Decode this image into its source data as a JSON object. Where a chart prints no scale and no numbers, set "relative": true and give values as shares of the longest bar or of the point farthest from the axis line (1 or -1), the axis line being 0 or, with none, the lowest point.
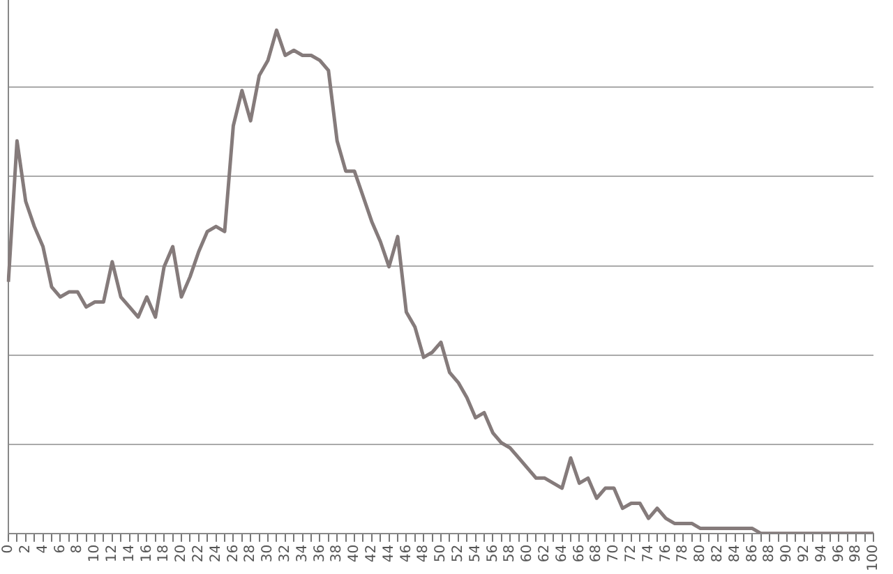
{
  "chart_data": {
    "type": "line",
    "relative": true,
    "grid": "y",
    "legend": false,
    "marker": "none",
    "line_style": "solid",
    "categories": [
      "0",
      null,
      "2",
      null,
      "4",
      null,
      "6",
      null,
      "8",
      null,
      "10",
      null,
      "12",
      null,
      "14",
      null,
      "16",
      null,
      "18",
      null,
      "20",
      null,
      "22",
      null,
      "24",
      null,
      "26",
      null,
      "28",
      null,
      "30",
      null,
      "32",
      null,
      "34",
      null,
      "36",
      null,
      "38",
      null,
      "40",
      null,
      "42",
      null,
      "44",
      null,
      "46",
      null,
      "48",
      null,
      "50",
      null,
      "52",
      null,
      "54",
      null,
      "56",
      null,
      "58",
      null,
      "60",
      null,
      "62",
      null,
      "64",
      null,
      "66",
      null,
      "68",
      null,
      "70",
      null,
      "72",
      null,
      "74",
      null,
      "76",
      null,
      "78",
      null,
      "80",
      null,
      "82",
      null,
      "84",
      null,
      "86",
      null,
      "88",
      null,
      "90",
      null,
      "92",
      null,
      "94",
      null,
      "96",
      null,
      "98",
      null,
      "100"
    ],
    "series": [
      {
        "color": "#857b7b",
        "values": [
          0.5,
          0.78,
          0.66,
          0.61,
          0.57,
          0.49,
          0.47,
          0.48,
          0.48,
          0.45,
          0.46,
          0.46,
          0.54,
          0.47,
          0.45,
          0.43,
          0.47,
          0.43,
          0.53,
          0.57,
          0.47,
          0.51,
          0.56,
          0.6,
          0.61,
          0.6,
          0.81,
          0.88,
          0.82,
          0.91,
          0.94,
          1,
          0.95,
          0.96,
          0.95,
          0.95,
          0.94,
          0.92,
          0.78,
          0.72,
          0.72,
          0.67,
          0.62,
          0.58,
          0.53,
          0.59,
          0.44,
          0.41,
          0.35,
          0.36,
          0.38,
          0.32,
          0.3,
          0.27,
          0.23,
          0.24,
          0.2,
          0.18,
          0.17,
          0.15,
          0.13,
          0.11,
          0.11,
          0.1,
          0.09,
          0.15,
          0.1,
          0.11,
          0.07,
          0.09,
          0.09,
          0.05,
          0.06,
          0.06,
          0.03,
          0.05,
          0.03,
          0.02,
          0.02,
          0.02,
          0.01,
          0.01,
          0.01,
          0.01,
          0.01,
          0.01,
          0.01,
          0,
          0,
          0,
          0,
          0,
          0,
          0,
          0,
          0,
          0,
          0,
          0,
          0,
          0
        ]
      }
    ]
  }
}
